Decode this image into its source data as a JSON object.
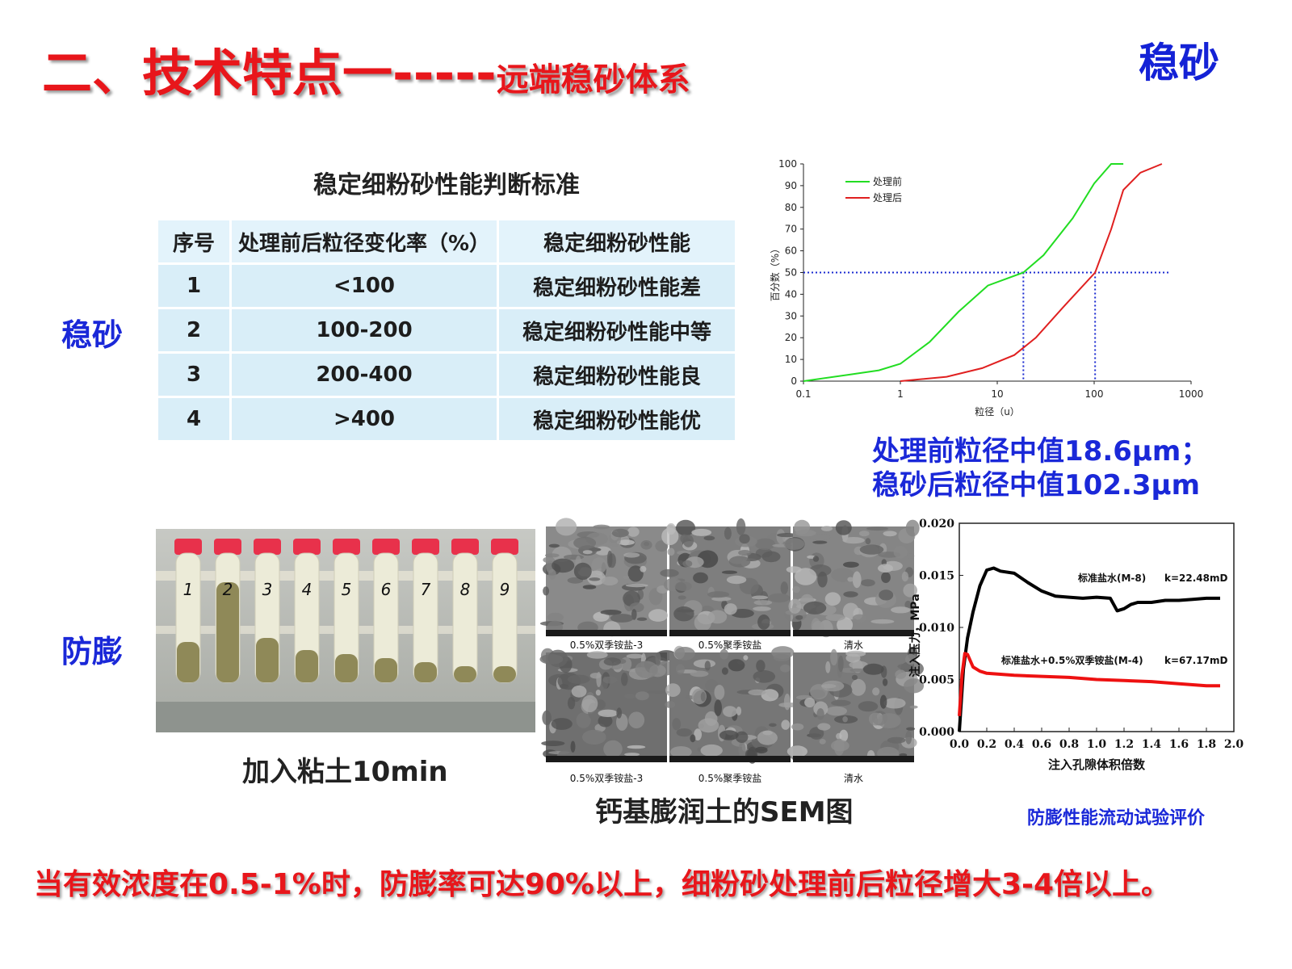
{
  "header": {
    "title_main": "二、技术特点一",
    "title_dashes": "-----",
    "title_sub": "远端稳砂体系",
    "corner_label": "稳砂"
  },
  "sections": {
    "sand_label": "稳砂",
    "swell_label": "防膨"
  },
  "criteria_table": {
    "title": "稳定细粉砂性能判断标准",
    "headers": [
      "序号",
      "处理前后粒径变化率（%）",
      "稳定细粉砂性能"
    ],
    "rows": [
      [
        "1",
        "<100",
        "稳定细粉砂性能差"
      ],
      [
        "2",
        "100-200",
        "稳定细粉砂性能中等"
      ],
      [
        "3",
        "200-400",
        "稳定细粉砂性能良"
      ],
      [
        "4",
        ">400",
        "稳定细粉砂性能优"
      ]
    ]
  },
  "chart_data": [
    {
      "type": "line",
      "ylabel": "百分数（%）",
      "xlabel": "粒径（u）",
      "x_scale": "log",
      "xlim": [
        0.1,
        1000
      ],
      "ylim": [
        0,
        100
      ],
      "x_ticks": [
        "0.1",
        "1",
        "10",
        "100",
        "1000"
      ],
      "y_ticks": [
        "0",
        "10",
        "20",
        "30",
        "40",
        "50",
        "60",
        "70",
        "80",
        "90",
        "100"
      ],
      "legend_position": "top-left",
      "series": [
        {
          "name": "处理前",
          "color": "#22dd22",
          "x": [
            0.1,
            0.3,
            0.6,
            1,
            2,
            4,
            8,
            18.6,
            30,
            60,
            100,
            150,
            200
          ],
          "y": [
            0,
            3,
            5,
            8,
            18,
            32,
            44,
            50,
            58,
            75,
            91,
            100,
            100
          ]
        },
        {
          "name": "处理后",
          "color": "#e02020",
          "x": [
            1,
            3,
            7,
            15,
            25,
            50,
            102.3,
            150,
            200,
            300,
            500
          ],
          "y": [
            0,
            2,
            6,
            12,
            20,
            35,
            50,
            70,
            88,
            96,
            100
          ]
        }
      ],
      "reference_lines": {
        "y": 50,
        "x": [
          18.6,
          102.3
        ],
        "style": "dotted",
        "color": "#1a2ad0"
      }
    },
    {
      "type": "line",
      "ylabel": "注入压力，MPa",
      "xlabel": "注入孔隙体积倍数",
      "xlim": [
        0,
        2.0
      ],
      "ylim": [
        0,
        0.02
      ],
      "x_ticks": [
        "0.0",
        "0.2",
        "0.4",
        "0.6",
        "0.8",
        "1.0",
        "1.2",
        "1.4",
        "1.6",
        "1.8",
        "2.0"
      ],
      "y_ticks": [
        "0.000",
        "0.005",
        "0.010",
        "0.015",
        "0.020"
      ],
      "series": [
        {
          "name": "标准盐水(M-8)",
          "annotation": "k=22.48mD",
          "color": "#000000",
          "x": [
            0.0,
            0.03,
            0.06,
            0.1,
            0.15,
            0.2,
            0.25,
            0.3,
            0.4,
            0.5,
            0.6,
            0.7,
            0.8,
            0.9,
            1.0,
            1.1,
            1.15,
            1.2,
            1.25,
            1.3,
            1.4,
            1.5,
            1.6,
            1.7,
            1.8,
            1.9
          ],
          "y": [
            0.0,
            0.006,
            0.009,
            0.0115,
            0.014,
            0.0155,
            0.0157,
            0.0154,
            0.0152,
            0.0143,
            0.0135,
            0.013,
            0.0129,
            0.0128,
            0.0129,
            0.0128,
            0.0116,
            0.0118,
            0.0122,
            0.0124,
            0.0124,
            0.0126,
            0.0126,
            0.0127,
            0.0128,
            0.0128
          ]
        },
        {
          "name": "标准盐水+0.5%双季铵盐(M-4)",
          "annotation": "k=67.17mD",
          "color": "#ee1111",
          "x": [
            0.0,
            0.02,
            0.04,
            0.06,
            0.1,
            0.15,
            0.2,
            0.4,
            0.6,
            0.8,
            1.0,
            1.2,
            1.4,
            1.6,
            1.8,
            1.9
          ],
          "y": [
            0.0015,
            0.0055,
            0.0075,
            0.0074,
            0.0062,
            0.0058,
            0.0056,
            0.0054,
            0.0053,
            0.0052,
            0.005,
            0.0049,
            0.0048,
            0.0046,
            0.0044,
            0.0044
          ]
        }
      ]
    }
  ],
  "captions": {
    "median_line1": "处理前粒径中值18.6μm；",
    "median_line2": "稳砂后粒径中值102.3μm",
    "tubes": "加入粘土10min",
    "sem": "钙基膨润土的SEM图",
    "flow": "防膨性能流动试验评价"
  },
  "tube_labels": [
    "1",
    "2",
    "3",
    "4",
    "5",
    "6",
    "7",
    "8",
    "9"
  ],
  "sem_labels": [
    "0.5%双季铵盐-3",
    "0.5%聚季铵盐",
    "清水",
    "0.5%双季铵盐-3",
    "0.5%聚季铵盐",
    "清水"
  ],
  "footer": "当有效浓度在0.5-1%时，防膨率可达90%以上，细粉砂处理前后粒径增大3-4倍以上。"
}
